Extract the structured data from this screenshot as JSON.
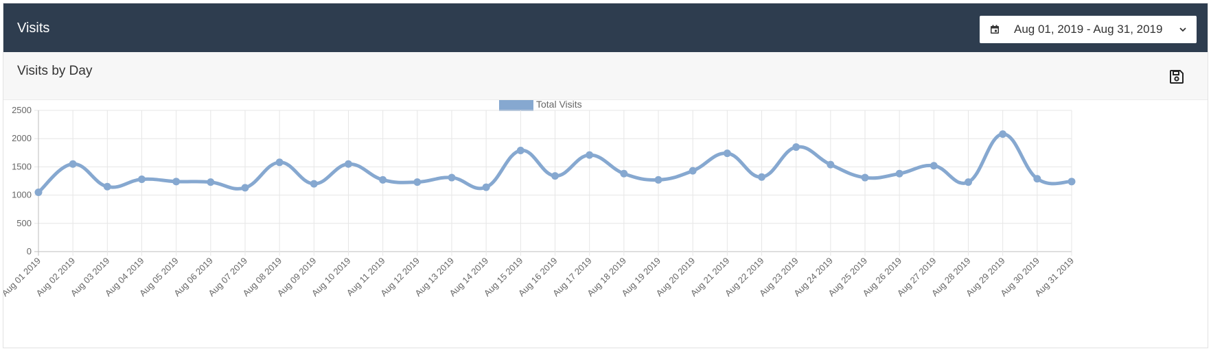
{
  "header": {
    "title": "Visits",
    "date_range": "Aug 01, 2019 - Aug 31, 2019"
  },
  "panel": {
    "title": "Visits by Day"
  },
  "icons": {
    "date_picker": "calendar-icon",
    "dropdown": "chevron-down-icon",
    "save": "save-icon"
  },
  "colors": {
    "header_bg": "#2e3d4f",
    "series": "#86a8d0"
  },
  "chart_data": {
    "type": "line",
    "title": "",
    "xlabel": "",
    "ylabel": "",
    "ylim": [
      0,
      2500
    ],
    "yticks": [
      0,
      500,
      1000,
      1500,
      2000,
      2500
    ],
    "grid": true,
    "legend_position": "top",
    "x": [
      "Aug 01 2019",
      "Aug 02 2019",
      "Aug 03 2019",
      "Aug 04 2019",
      "Aug 05 2019",
      "Aug 06 2019",
      "Aug 07 2019",
      "Aug 08 2019",
      "Aug 09 2019",
      "Aug 10 2019",
      "Aug 11 2019",
      "Aug 12 2019",
      "Aug 13 2019",
      "Aug 14 2019",
      "Aug 15 2019",
      "Aug 16 2019",
      "Aug 17 2019",
      "Aug 18 2019",
      "Aug 19 2019",
      "Aug 20 2019",
      "Aug 21 2019",
      "Aug 22 2019",
      "Aug 23 2019",
      "Aug 24 2019",
      "Aug 25 2019",
      "Aug 26 2019",
      "Aug 27 2019",
      "Aug 28 2019",
      "Aug 29 2019",
      "Aug 30 2019",
      "Aug 31 2019"
    ],
    "series": [
      {
        "name": "Total Visits",
        "values": [
          1050,
          1550,
          1150,
          1280,
          1240,
          1230,
          1130,
          1580,
          1200,
          1550,
          1270,
          1230,
          1310,
          1140,
          1790,
          1340,
          1710,
          1380,
          1270,
          1430,
          1740,
          1320,
          1850,
          1540,
          1310,
          1380,
          1520,
          1230,
          2080,
          1290,
          1240
        ]
      }
    ]
  }
}
